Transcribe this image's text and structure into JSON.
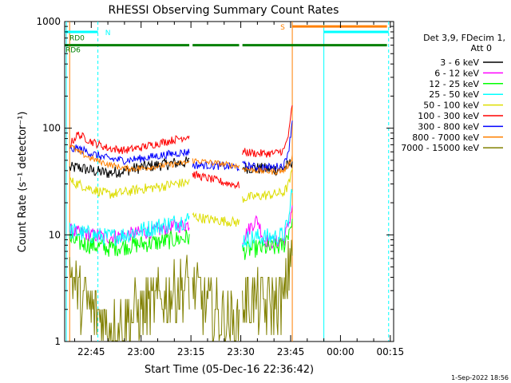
{
  "chart_data": {
    "type": "line",
    "title": "RHESSI Observing Summary Count Rates",
    "xlabel": "Start Time (05-Dec-16 22:36:42)",
    "ylabel": "Count Rate (s⁻¹ detector⁻¹)",
    "y_scale": "log",
    "ylim": [
      1,
      1000
    ],
    "xlim_minutes_after_22_00": [
      37,
      136
    ],
    "x_ticks": [
      {
        "label": "22:45",
        "m": 45
      },
      {
        "label": "23:00",
        "m": 60
      },
      {
        "label": "23:15",
        "m": 75
      },
      {
        "label": "23:30",
        "m": 90
      },
      {
        "label": "23:45",
        "m": 105
      },
      {
        "label": "00:00",
        "m": 120
      },
      {
        "label": "00:15",
        "m": 135
      }
    ],
    "y_ticks": [
      {
        "label": "1",
        "v": 1
      },
      {
        "label": "10",
        "v": 10
      },
      {
        "label": "100",
        "v": 100
      },
      {
        "label": "1000",
        "v": 1000
      }
    ],
    "legend_header": [
      "Det 3,9, FDecim 1,",
      "Att 0"
    ],
    "series": [
      {
        "name": "3 - 6 keV",
        "color": "#000000",
        "noise": 0.06,
        "segments": [
          {
            "x": [
              38.5,
              41,
              45,
              50,
              55,
              60,
              65,
              70,
              74.5
            ],
            "y": [
              42,
              43,
              40,
              38,
              40,
              43,
              45,
              47,
              48
            ]
          },
          {
            "x": [
              90.5,
              95,
              100,
              103,
              104.5,
              105.5
            ],
            "y": [
              43,
              42,
              41,
              42,
              45,
              50
            ]
          }
        ]
      },
      {
        "name": "6 - 12 keV",
        "color": "#ff00ff",
        "noise": 0.07,
        "segments": [
          {
            "x": [
              38.5,
              41,
              45,
              50,
              55,
              60,
              65,
              70,
              74.5
            ],
            "y": [
              11,
              10.5,
              10,
              9.5,
              10,
              10.5,
              11,
              12,
              12.5
            ]
          },
          {
            "x": [
              90.5,
              93,
              95,
              97,
              100,
              103,
              104.5,
              105.5
            ],
            "y": [
              9,
              12,
              14,
              9,
              8.5,
              9,
              13,
              19
            ]
          }
        ]
      },
      {
        "name": "12 - 25 keV",
        "color": "#00ff00",
        "noise": 0.09,
        "segments": [
          {
            "x": [
              38.5,
              41,
              45,
              50,
              55,
              60,
              65,
              70,
              74.5
            ],
            "y": [
              9,
              8.5,
              8,
              7.5,
              7.8,
              8.2,
              8.5,
              9,
              9.5
            ]
          },
          {
            "x": [
              90.5,
              95,
              100,
              103,
              104.5,
              105.5
            ],
            "y": [
              7,
              7.5,
              7.5,
              8,
              11,
              14
            ]
          }
        ]
      },
      {
        "name": "25 - 50 keV",
        "color": "#00ffff",
        "noise": 0.09,
        "segments": [
          {
            "x": [
              38.5,
              41,
              45,
              50,
              55,
              60,
              65,
              70,
              74.5
            ],
            "y": [
              11,
              10.5,
              10,
              9.5,
              10,
              11,
              12,
              13,
              14
            ]
          },
          {
            "x": [
              90.5,
              95,
              100,
              103,
              104.5,
              105.5
            ],
            "y": [
              9,
              9.5,
              9.5,
              10,
              14,
              30
            ]
          }
        ]
      },
      {
        "name": "50 - 100 keV",
        "color": "#dddd00",
        "noise": 0.05,
        "segments": [
          {
            "x": [
              38.5,
              41,
              45,
              50,
              55,
              60,
              65,
              70,
              74.5
            ],
            "y": [
              32,
              30,
              27,
              24,
              25,
              27,
              28,
              30,
              31
            ]
          },
          {
            "x": [
              75.5,
              80,
              85,
              89.5
            ],
            "y": [
              15,
              14,
              13.5,
              13
            ]
          },
          {
            "x": [
              90.5,
              95,
              100,
              103,
              104.5,
              105.5
            ],
            "y": [
              22,
              23,
              24,
              25,
              30,
              40
            ]
          }
        ]
      },
      {
        "name": "100 - 300 keV",
        "color": "#ff0000",
        "noise": 0.04,
        "segments": [
          {
            "x": [
              38.5,
              41,
              45,
              50,
              55,
              60,
              65,
              70,
              74.5
            ],
            "y": [
              70,
              88,
              75,
              65,
              62,
              66,
              72,
              78,
              85
            ]
          },
          {
            "x": [
              75.5,
              80,
              85,
              89.5
            ],
            "y": [
              37,
              34,
              31,
              29
            ]
          },
          {
            "x": [
              90.5,
              95,
              100,
              103,
              104.5,
              105.5
            ],
            "y": [
              60,
              58,
              58,
              62,
              90,
              170
            ]
          }
        ]
      },
      {
        "name": "300 - 800 keV",
        "color": "#0000ff",
        "noise": 0.04,
        "segments": [
          {
            "x": [
              38.5,
              41,
              45,
              50,
              55,
              60,
              65,
              70,
              74.5
            ],
            "y": [
              62,
              65,
              58,
              52,
              50,
              52,
              55,
              58,
              60
            ]
          },
          {
            "x": [
              75.5,
              80,
              85,
              89.5
            ],
            "y": [
              45,
              45,
              44,
              43
            ]
          },
          {
            "x": [
              90.5,
              95,
              100,
              103,
              104.5,
              105.5
            ],
            "y": [
              45,
              43,
              43,
              45,
              65,
              120
            ]
          }
        ]
      },
      {
        "name": "800 - 7000 keV",
        "color": "#ff8000",
        "noise": 0.03,
        "segments": [
          {
            "x": [
              38.5,
              41,
              45,
              50,
              55,
              60,
              65,
              70,
              74.5
            ],
            "y": [
              70,
              60,
              52,
              46,
              42,
              42,
              44,
              46,
              48
            ]
          },
          {
            "x": [
              75.5,
              80,
              85,
              89.5
            ],
            "y": [
              50,
              48,
              46,
              44
            ]
          },
          {
            "x": [
              90.5,
              95,
              100,
              103,
              104.5,
              105.5
            ],
            "y": [
              42,
              40,
              39,
              40,
              46,
              55
            ]
          }
        ]
      },
      {
        "name": "7000 - 15000 keV",
        "color": "#808000",
        "noise": 0.18,
        "segments": [
          {
            "x": [
              38.5,
              40,
              42,
              45,
              48,
              50,
              52,
              55,
              58,
              60,
              63,
              65,
              68,
              70,
              72,
              74.5
            ],
            "y": [
              5,
              3.5,
              2.5,
              2,
              1.6,
              1.4,
              1.3,
              1.5,
              1.8,
              2,
              2.2,
              2.4,
              2.6,
              2.9,
              3.2,
              3.6
            ]
          },
          {
            "x": [
              75.5,
              80,
              85,
              89.5
            ],
            "y": [
              3,
              2.2,
              1.6,
              1.3
            ]
          },
          {
            "x": [
              90.5,
              95,
              100,
              103,
              104.5,
              105.5
            ],
            "y": [
              2.5,
              2.3,
              2.2,
              2.4,
              5,
              10
            ]
          }
        ]
      }
    ],
    "flags": [
      {
        "label": "RD6",
        "color": "#008000",
        "y": 600,
        "segments": [
          [
            37,
            38.5
          ],
          [
            38.5,
            74.5
          ],
          [
            75.5,
            89.5
          ],
          [
            90.5,
            134
          ]
        ]
      },
      {
        "label": "RD0",
        "color": "#008000",
        "y": 700,
        "segments": []
      },
      {
        "label": "N",
        "color": "#00ffff",
        "y": 800,
        "segments": [
          [
            37,
            47
          ]
        ]
      },
      {
        "label": "S",
        "color": "#ff8000",
        "y": 900,
        "segments": [
          [
            105.5,
            134
          ]
        ]
      }
    ],
    "cyan_top": {
      "y": 800,
      "segments": [
        [
          115,
          134.5
        ]
      ]
    },
    "vertical_markers": [
      {
        "m": 37.5,
        "color": "#00ffff",
        "dashed": false
      },
      {
        "m": 47,
        "color": "#00ffff",
        "dashed": true
      },
      {
        "m": 38.5,
        "color": "#ff8000",
        "dashed": false
      },
      {
        "m": 105.5,
        "color": "#ff8000",
        "dashed": false
      },
      {
        "m": 115,
        "color": "#00ffff",
        "dashed": false
      },
      {
        "m": 134.5,
        "color": "#00ffff",
        "dashed": true
      }
    ]
  },
  "footer_date": "1-Sep-2022 18:56"
}
